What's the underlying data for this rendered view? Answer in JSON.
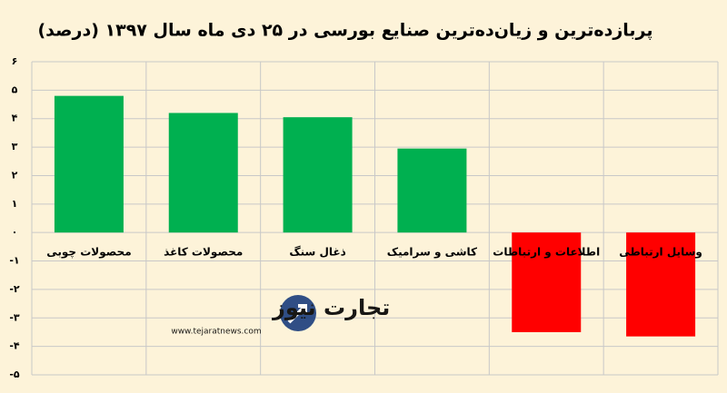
{
  "chart_data": {
    "type": "bar",
    "title": "پربازده‌ترین و زیان‌ده‌ترین صنایع بورسی در ۲۵ دی ماه سال ۱۳۹۷ (درصد)",
    "categories": [
      "محصولات چوبی",
      "محصولات کاغذ",
      "ذغال سنگ",
      "کاشی و سرامیک",
      "اطلاعات و ارتباطات",
      "وسایل ارتباطی"
    ],
    "values": [
      4.8,
      4.2,
      4.05,
      2.95,
      -3.5,
      -3.65
    ],
    "colors": [
      "#00b050",
      "#00b050",
      "#00b050",
      "#00b050",
      "#ff0000",
      "#ff0000"
    ],
    "ylim": [
      -5,
      6
    ],
    "yticks": [
      {
        "value": 6,
        "label": "۶"
      },
      {
        "value": 5,
        "label": "۵"
      },
      {
        "value": 4,
        "label": "۴"
      },
      {
        "value": 3,
        "label": "۳"
      },
      {
        "value": 2,
        "label": "۲"
      },
      {
        "value": 1,
        "label": "۱"
      },
      {
        "value": 0,
        "label": "۰"
      },
      {
        "value": -1,
        "label": "-۱"
      },
      {
        "value": -2,
        "label": "-۲"
      },
      {
        "value": -3,
        "label": "-۳"
      },
      {
        "value": -4,
        "label": "-۴"
      },
      {
        "value": -5,
        "label": "-۵"
      }
    ],
    "grid": true
  },
  "watermark": {
    "name": "تجارت نیوز",
    "url": "www.tejaratnews.com"
  }
}
